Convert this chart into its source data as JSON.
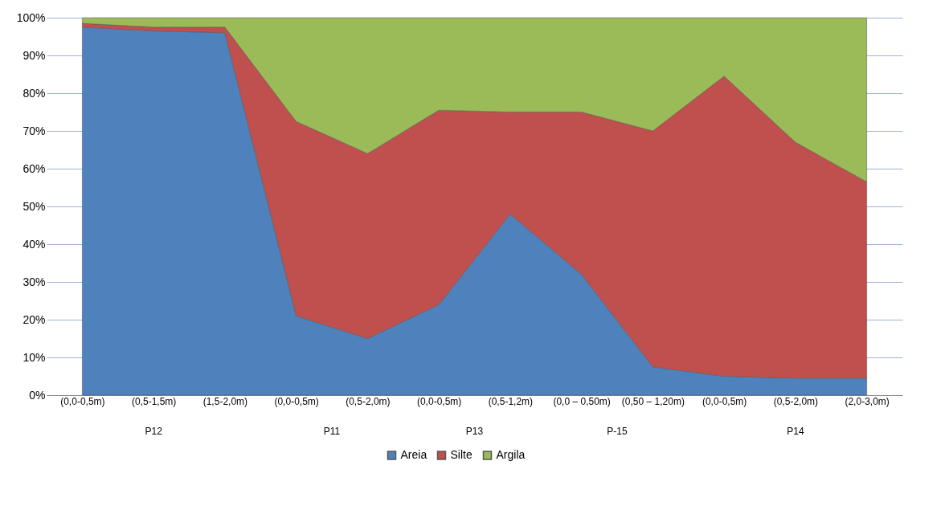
{
  "chart_data": {
    "type": "area",
    "stacked": true,
    "categories": [
      "(0,0-0,5m)",
      "(0,5-1,5m)",
      "(1,5-2,0m)",
      "(0,0-0,5m)",
      "(0,5-2,0m)",
      "(0,0-0,5m)",
      "(0,5-1,2m)",
      "(0,0 – 0,50m)",
      "(0,50 – 1,20m)",
      "(0,0-0,5m)",
      "(0,5-2,0m)",
      "(2,0-3,0m)"
    ],
    "series": [
      {
        "name": "Areia",
        "color": "#4f81bd",
        "values": [
          97.5,
          96.5,
          96,
          21,
          15,
          24,
          48,
          32,
          7.5,
          5,
          4.5,
          4.5
        ]
      },
      {
        "name": "Silte",
        "color": "#c0504d",
        "values": [
          1,
          1,
          1.5,
          51.5,
          49,
          51.5,
          27,
          43,
          62.5,
          79.5,
          62.5,
          52
        ]
      },
      {
        "name": "Argila",
        "color": "#9bbb59",
        "values": [
          1.5,
          2.5,
          2.5,
          27.5,
          36,
          24.5,
          25,
          25,
          30,
          15.5,
          33,
          43.5
        ]
      }
    ],
    "ylim": [
      0,
      100
    ],
    "yticks": [
      {
        "value": 0,
        "label": "0%"
      },
      {
        "value": 10,
        "label": "10%"
      },
      {
        "value": 20,
        "label": "20%"
      },
      {
        "value": 30,
        "label": "30%"
      },
      {
        "value": 40,
        "label": "40%"
      },
      {
        "value": 50,
        "label": "50%"
      },
      {
        "value": 60,
        "label": "60%"
      },
      {
        "value": 70,
        "label": "70%"
      },
      {
        "value": 80,
        "label": "80%"
      },
      {
        "value": 90,
        "label": "90%"
      },
      {
        "value": 100,
        "label": "100%"
      }
    ],
    "grid": "y",
    "legend": "bottom",
    "annotations": [
      "P12",
      "P11",
      "P13",
      "P-15",
      "P14"
    ]
  }
}
